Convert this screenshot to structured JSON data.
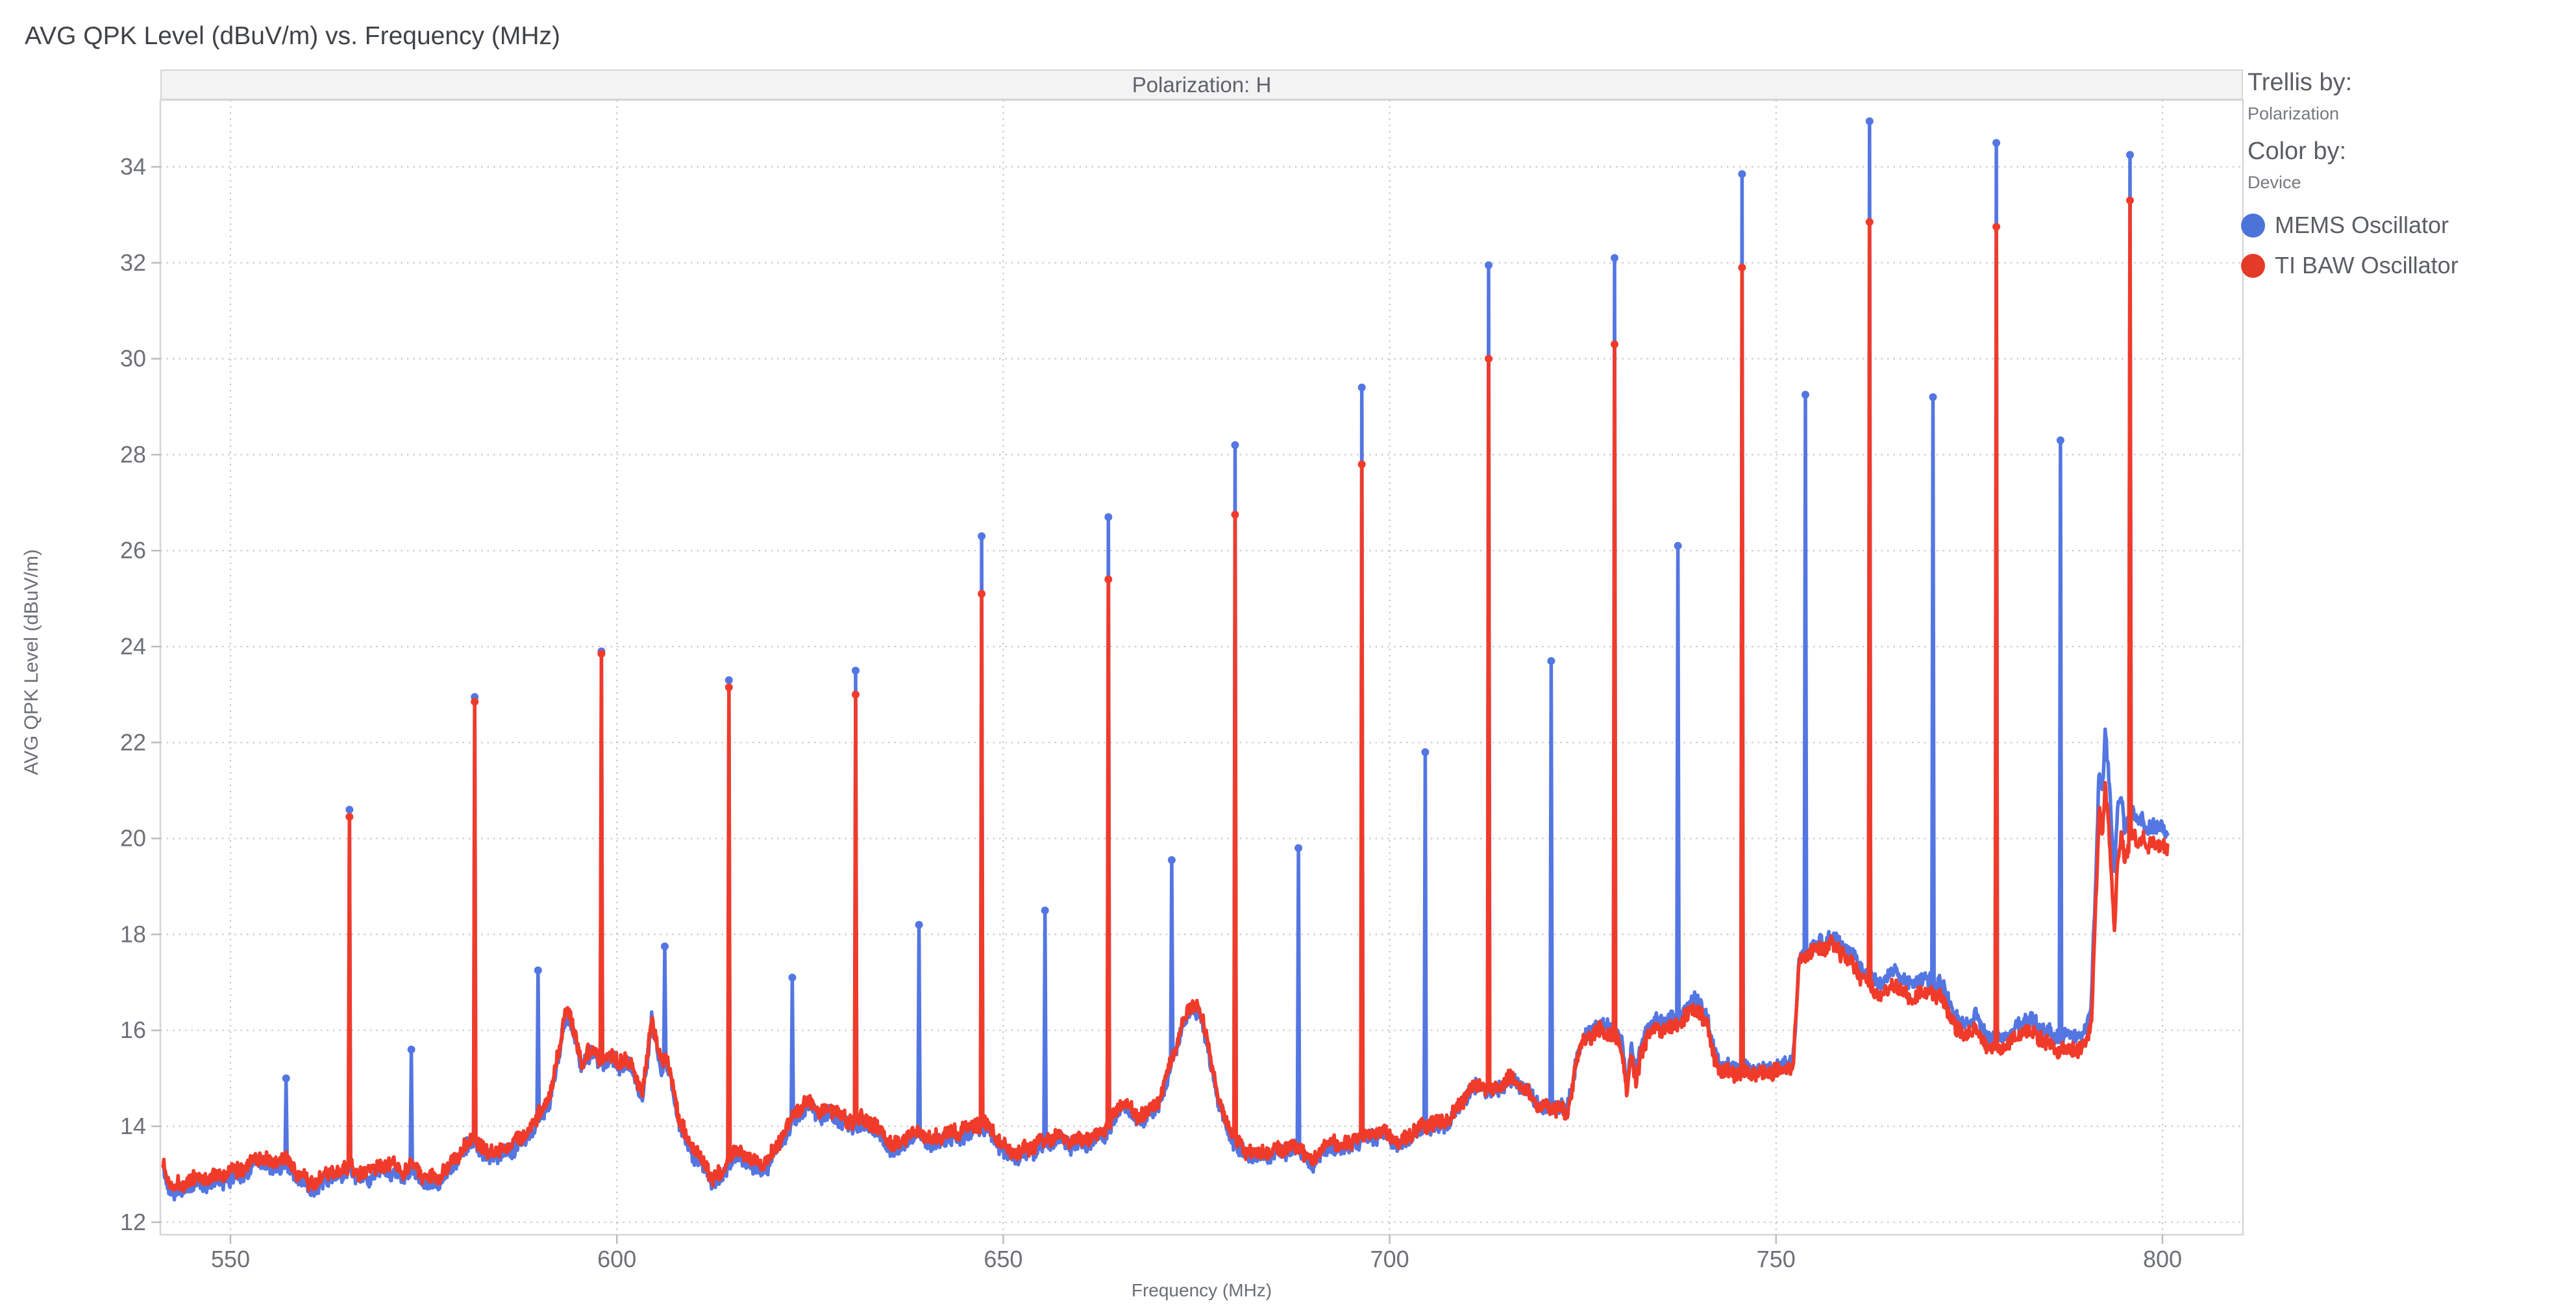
{
  "title": "AVG QPK Level (dBuV/m) vs. Frequency (MHz)",
  "trellis_header": "Polarization: H",
  "legend": {
    "trellis_by_label": "Trellis by:",
    "trellis_by_value": "Polarization",
    "color_by_label": "Color by:",
    "color_by_value": "Device",
    "items": [
      {
        "label": "MEMS Oscillator",
        "color": "#4b73d8"
      },
      {
        "label": "TI BAW Oscillator",
        "color": "#e43b28"
      }
    ]
  },
  "style": {
    "background": "#ffffff",
    "title_color": "#3f4347",
    "header_bg": "#f3f3f4",
    "header_text_color": "#5f6368",
    "plot_border_color": "#d6d6d6",
    "grid_color": "#c9c9c9",
    "tick_mark_color": "#b9bcc0",
    "tick_label_color": "#6d7076",
    "axis_title_color": "#6b6f75",
    "series_mems_color": "#5376e2",
    "series_ti_baw_color": "#f13b2a"
  },
  "chart_data": {
    "type": "line",
    "title": "AVG QPK Level (dBuV/m) vs. Frequency (MHz)",
    "trellis_panel": "Polarization: H",
    "xlabel": "Frequency (MHz)",
    "ylabel": "AVG QPK Level (dBuV/m)",
    "xlim": [
      541.0,
      810.4
    ],
    "ylim": [
      11.74,
      35.39
    ],
    "x_ticks": [
      550,
      600,
      650,
      700,
      750,
      800
    ],
    "y_ticks": [
      12,
      14,
      16,
      18,
      20,
      22,
      24,
      26,
      28,
      30,
      32,
      34
    ],
    "grid": "dotted",
    "legend_position": "right",
    "data_range_mhz": [
      541.3,
      800.7
    ],
    "sample_step_mhz": 0.08,
    "noise_amplitude_db": 0.14,
    "series": [
      {
        "name": "MEMS Oscillator",
        "color": "#5376e2"
      },
      {
        "name": "TI BAW Oscillator",
        "color": "#f13b2a"
      }
    ],
    "noise_floor_anchors": [
      [
        541.3,
        13.25
      ],
      [
        541.7,
        12.95
      ],
      [
        542.5,
        12.8
      ],
      [
        543.5,
        12.78
      ],
      [
        544.5,
        12.85
      ],
      [
        545.5,
        12.95
      ],
      [
        546.5,
        12.9
      ],
      [
        548,
        12.95
      ],
      [
        549.5,
        13.0
      ],
      [
        551,
        13.1
      ],
      [
        552.3,
        13.2
      ],
      [
        553.3,
        13.38
      ],
      [
        554.3,
        13.3
      ],
      [
        555.3,
        13.25
      ],
      [
        556.4,
        13.32
      ],
      [
        557.2,
        13.3
      ],
      [
        558,
        13.15
      ],
      [
        559,
        13.0
      ],
      [
        560.3,
        12.8
      ],
      [
        561.2,
        12.85
      ],
      [
        562.2,
        12.95
      ],
      [
        563.2,
        13.05
      ],
      [
        564.2,
        13.05
      ],
      [
        565.4,
        13.22
      ],
      [
        566.4,
        13.0
      ],
      [
        567.5,
        13.05
      ],
      [
        568.5,
        13.1
      ],
      [
        569.5,
        13.2
      ],
      [
        570.5,
        13.18
      ],
      [
        571.5,
        13.12
      ],
      [
        572.4,
        13.1
      ],
      [
        573.4,
        13.2
      ],
      [
        574.5,
        13.05
      ],
      [
        575.7,
        12.9
      ],
      [
        576.7,
        12.92
      ],
      [
        578,
        13.1
      ],
      [
        579.3,
        13.38
      ],
      [
        580.5,
        13.65
      ],
      [
        581.6,
        13.8
      ],
      [
        582.5,
        13.55
      ],
      [
        583.5,
        13.45
      ],
      [
        584.5,
        13.5
      ],
      [
        585.5,
        13.55
      ],
      [
        586.5,
        13.65
      ],
      [
        587.5,
        13.75
      ],
      [
        588.5,
        13.9
      ],
      [
        589.7,
        14.15
      ],
      [
        590.5,
        14.35
      ],
      [
        591.5,
        14.75
      ],
      [
        592.5,
        15.6
      ],
      [
        593.4,
        16.5
      ],
      [
        594,
        16.25
      ],
      [
        594.7,
        15.8
      ],
      [
        595.4,
        15.35
      ],
      [
        596.2,
        15.55
      ],
      [
        597,
        15.6
      ],
      [
        597.8,
        15.4
      ],
      [
        598.6,
        15.45
      ],
      [
        599.4,
        15.5
      ],
      [
        600.2,
        15.35
      ],
      [
        601,
        15.4
      ],
      [
        601.8,
        15.3
      ],
      [
        602.6,
        15.0
      ],
      [
        603.3,
        14.75
      ],
      [
        603.9,
        15.35
      ],
      [
        604.5,
        16.3
      ],
      [
        605.1,
        15.85
      ],
      [
        605.7,
        15.3
      ],
      [
        606.4,
        15.42
      ],
      [
        607.2,
        14.9
      ],
      [
        608,
        14.15
      ],
      [
        608.8,
        13.85
      ],
      [
        609.6,
        13.6
      ],
      [
        610.5,
        13.4
      ],
      [
        611.5,
        13.2
      ],
      [
        612.4,
        12.95
      ],
      [
        613.4,
        13.0
      ],
      [
        614.5,
        13.3
      ],
      [
        615.6,
        13.5
      ],
      [
        616.6,
        13.42
      ],
      [
        617.6,
        13.28
      ],
      [
        618.6,
        13.2
      ],
      [
        619.6,
        13.3
      ],
      [
        620.6,
        13.6
      ],
      [
        621.6,
        13.85
      ],
      [
        622.7,
        14.2
      ],
      [
        623.7,
        14.4
      ],
      [
        624.7,
        14.5
      ],
      [
        625.7,
        14.38
      ],
      [
        626.7,
        14.3
      ],
      [
        627.7,
        14.35
      ],
      [
        628.7,
        14.28
      ],
      [
        629.7,
        14.12
      ],
      [
        630.8,
        14.1
      ],
      [
        631.8,
        14.15
      ],
      [
        632.8,
        14.1
      ],
      [
        633.8,
        13.95
      ],
      [
        634.8,
        13.75
      ],
      [
        635.8,
        13.62
      ],
      [
        636.8,
        13.65
      ],
      [
        637.8,
        13.85
      ],
      [
        638.8,
        13.92
      ],
      [
        639.8,
        13.85
      ],
      [
        640.8,
        13.75
      ],
      [
        641.8,
        13.8
      ],
      [
        643,
        13.85
      ],
      [
        644.2,
        13.9
      ],
      [
        645.4,
        13.97
      ],
      [
        646.6,
        14.02
      ],
      [
        647.6,
        14.05
      ],
      [
        648.6,
        13.95
      ],
      [
        649.6,
        13.68
      ],
      [
        650.6,
        13.5
      ],
      [
        651.6,
        13.42
      ],
      [
        652.6,
        13.5
      ],
      [
        653.6,
        13.58
      ],
      [
        654.6,
        13.68
      ],
      [
        655.6,
        13.72
      ],
      [
        656.6,
        13.78
      ],
      [
        657.8,
        13.78
      ],
      [
        659,
        13.7
      ],
      [
        660.2,
        13.73
      ],
      [
        661.4,
        13.78
      ],
      [
        662.6,
        13.88
      ],
      [
        663.8,
        14.05
      ],
      [
        664.8,
        14.35
      ],
      [
        665.7,
        14.55
      ],
      [
        666.5,
        14.35
      ],
      [
        667.3,
        14.22
      ],
      [
        668.2,
        14.28
      ],
      [
        669.1,
        14.35
      ],
      [
        670,
        14.5
      ],
      [
        671,
        14.95
      ],
      [
        672,
        15.5
      ],
      [
        673,
        16.1
      ],
      [
        674,
        16.45
      ],
      [
        674.8,
        16.6
      ],
      [
        675.6,
        16.3
      ],
      [
        676.4,
        15.8
      ],
      [
        677.2,
        15.1
      ],
      [
        678,
        14.5
      ],
      [
        679,
        14.05
      ],
      [
        680,
        13.72
      ],
      [
        681,
        13.55
      ],
      [
        682.2,
        13.45
      ],
      [
        683.4,
        13.42
      ],
      [
        684.6,
        13.48
      ],
      [
        685.8,
        13.52
      ],
      [
        687,
        13.6
      ],
      [
        688.2,
        13.55
      ],
      [
        689.2,
        13.45
      ],
      [
        690,
        13.18
      ],
      [
        690.7,
        13.5
      ],
      [
        691.7,
        13.6
      ],
      [
        693,
        13.65
      ],
      [
        694.5,
        13.65
      ],
      [
        696,
        13.75
      ],
      [
        697.5,
        13.85
      ],
      [
        699,
        13.9
      ],
      [
        700.2,
        13.78
      ],
      [
        701.2,
        13.65
      ],
      [
        702.2,
        13.78
      ],
      [
        703.2,
        13.92
      ],
      [
        704.3,
        14.02
      ],
      [
        705.4,
        14.05
      ],
      [
        706.5,
        14.07
      ],
      [
        707.6,
        14.15
      ],
      [
        708.7,
        14.38
      ],
      [
        709.8,
        14.65
      ],
      [
        710.8,
        14.85
      ],
      [
        711.8,
        14.88
      ],
      [
        712.8,
        14.72
      ],
      [
        713.8,
        14.8
      ],
      [
        714.8,
        14.95
      ],
      [
        715.8,
        15.0
      ],
      [
        716.8,
        14.9
      ],
      [
        717.8,
        14.72
      ],
      [
        718.8,
        14.52
      ],
      [
        719.8,
        14.42
      ],
      [
        720.9,
        14.35
      ],
      [
        722,
        14.42
      ],
      [
        722.9,
        14.18
      ],
      [
        723.5,
        14.75
      ],
      [
        724.2,
        15.35
      ],
      [
        725.2,
        15.78
      ],
      [
        726.2,
        15.92
      ],
      [
        727.2,
        16.0
      ],
      [
        728.2,
        15.95
      ],
      [
        729.2,
        15.85
      ],
      [
        730.1,
        15.6
      ],
      [
        730.7,
        14.72
      ],
      [
        731.3,
        15.5
      ],
      [
        731.9,
        14.88
      ],
      [
        732.6,
        15.6
      ],
      [
        733.4,
        15.9
      ],
      [
        734.4,
        16.0
      ],
      [
        735.4,
        16.05
      ],
      [
        736.4,
        16.05
      ],
      [
        737.4,
        16.1
      ],
      [
        738.4,
        16.3
      ],
      [
        739.3,
        16.45
      ],
      [
        740.2,
        16.4
      ],
      [
        741.1,
        16.05
      ],
      [
        742,
        15.45
      ],
      [
        742.9,
        15.18
      ],
      [
        744,
        15.1
      ],
      [
        745.2,
        15.12
      ],
      [
        746.4,
        15.15
      ],
      [
        747.6,
        15.1
      ],
      [
        748.8,
        15.12
      ],
      [
        750,
        15.15
      ],
      [
        751.2,
        15.2
      ],
      [
        752.2,
        15.28
      ],
      [
        752.6,
        16.3
      ],
      [
        753,
        17.4
      ],
      [
        753.8,
        17.55
      ],
      [
        754.8,
        17.65
      ],
      [
        755.8,
        17.72
      ],
      [
        756.8,
        17.78
      ],
      [
        757.8,
        17.72
      ],
      [
        758.8,
        17.58
      ],
      [
        759.8,
        17.4
      ],
      [
        760.8,
        17.15
      ],
      [
        761.8,
        16.95
      ],
      [
        762.8,
        16.78
      ],
      [
        763.8,
        16.72
      ],
      [
        764.6,
        16.88
      ],
      [
        765.4,
        17.0
      ],
      [
        766.2,
        16.82
      ],
      [
        767.2,
        16.7
      ],
      [
        768.2,
        16.75
      ],
      [
        769.2,
        16.8
      ],
      [
        770.2,
        16.78
      ],
      [
        771.2,
        16.72
      ],
      [
        772.2,
        16.45
      ],
      [
        773.2,
        16.05
      ],
      [
        774.2,
        15.85
      ],
      [
        775,
        16.0
      ],
      [
        775.8,
        16.08
      ],
      [
        776.6,
        15.85
      ],
      [
        777.5,
        15.65
      ],
      [
        778.5,
        15.6
      ],
      [
        779.5,
        15.68
      ],
      [
        780.5,
        15.75
      ],
      [
        781.5,
        15.92
      ],
      [
        782.5,
        16.0
      ],
      [
        783.5,
        15.92
      ],
      [
        784.5,
        15.82
      ],
      [
        785.5,
        15.68
      ],
      [
        786.8,
        15.62
      ],
      [
        788,
        15.62
      ],
      [
        789.2,
        15.6
      ],
      [
        790.2,
        15.72
      ],
      [
        790.8,
        16.2
      ],
      [
        791.3,
        18.3
      ],
      [
        791.8,
        20.6
      ],
      [
        792.2,
        20.05
      ],
      [
        792.6,
        21.1
      ],
      [
        793,
        20.4
      ],
      [
        793.4,
        19.3
      ],
      [
        793.8,
        18.05
      ],
      [
        794.2,
        19.6
      ],
      [
        794.7,
        20.0
      ],
      [
        795.1,
        19.5
      ],
      [
        795.6,
        19.85
      ],
      [
        796.2,
        20.2
      ],
      [
        796.8,
        19.8
      ],
      [
        797.4,
        20.0
      ],
      [
        798,
        19.85
      ],
      [
        798.7,
        19.95
      ],
      [
        799.4,
        19.8
      ],
      [
        800.1,
        19.88
      ],
      [
        800.7,
        19.8
      ]
    ],
    "mems_offset_anchors": [
      [
        541,
        -0.13
      ],
      [
        575,
        -0.12
      ],
      [
        600,
        -0.1
      ],
      [
        625,
        -0.12
      ],
      [
        650,
        -0.12
      ],
      [
        675,
        -0.1
      ],
      [
        700,
        -0.08
      ],
      [
        712,
        -0.06
      ],
      [
        720,
        0.0
      ],
      [
        726,
        0.12
      ],
      [
        735,
        0.15
      ],
      [
        740,
        0.2
      ],
      [
        742.5,
        0.1
      ],
      [
        748,
        0.06
      ],
      [
        752,
        0.08
      ],
      [
        756,
        0.12
      ],
      [
        760,
        0.18
      ],
      [
        764,
        0.3
      ],
      [
        768,
        0.28
      ],
      [
        772,
        0.25
      ],
      [
        776,
        0.22
      ],
      [
        780,
        0.2
      ],
      [
        784,
        0.22
      ],
      [
        788,
        0.25
      ],
      [
        790.5,
        0.35
      ],
      [
        791.8,
        0.75
      ],
      [
        792.6,
        1.05
      ],
      [
        793.4,
        1.1
      ],
      [
        793.8,
        1.25
      ],
      [
        794.5,
        0.8
      ],
      [
        795.5,
        0.6
      ],
      [
        796.5,
        0.45
      ],
      [
        798,
        0.35
      ],
      [
        800.7,
        0.3
      ]
    ],
    "harmonic_spikes": [
      {
        "f": 557.2,
        "mems": 15.0,
        "ti_baw": null
      },
      {
        "f": 565.4,
        "mems": 20.6,
        "ti_baw": 20.45
      },
      {
        "f": 573.4,
        "mems": 15.6,
        "ti_baw": null
      },
      {
        "f": 581.6,
        "mems": 22.95,
        "ti_baw": 22.85
      },
      {
        "f": 589.8,
        "mems": 17.25,
        "ti_baw": null
      },
      {
        "f": 598.0,
        "mems": 23.9,
        "ti_baw": 23.85
      },
      {
        "f": 606.2,
        "mems": 17.75,
        "ti_baw": null
      },
      {
        "f": 614.5,
        "mems": 23.3,
        "ti_baw": 23.15
      },
      {
        "f": 622.7,
        "mems": 17.1,
        "ti_baw": null
      },
      {
        "f": 630.9,
        "mems": 23.5,
        "ti_baw": 23.0
      },
      {
        "f": 639.1,
        "mems": 18.2,
        "ti_baw": null
      },
      {
        "f": 647.2,
        "mems": 26.3,
        "ti_baw": 25.1
      },
      {
        "f": 655.4,
        "mems": 18.5,
        "ti_baw": null
      },
      {
        "f": 663.6,
        "mems": 26.7,
        "ti_baw": 25.4
      },
      {
        "f": 671.8,
        "mems": 19.55,
        "ti_baw": null
      },
      {
        "f": 680.0,
        "mems": 28.2,
        "ti_baw": 26.75
      },
      {
        "f": 688.2,
        "mems": 19.8,
        "ti_baw": null
      },
      {
        "f": 696.4,
        "mems": 29.4,
        "ti_baw": 27.8
      },
      {
        "f": 704.6,
        "mems": 21.8,
        "ti_baw": null
      },
      {
        "f": 712.8,
        "mems": 31.95,
        "ti_baw": 30.0
      },
      {
        "f": 720.9,
        "mems": 23.7,
        "ti_baw": null
      },
      {
        "f": 729.1,
        "mems": 32.1,
        "ti_baw": 30.3
      },
      {
        "f": 737.3,
        "mems": 26.1,
        "ti_baw": null
      },
      {
        "f": 745.6,
        "mems": 33.85,
        "ti_baw": 31.9
      },
      {
        "f": 753.8,
        "mems": 29.25,
        "ti_baw": null
      },
      {
        "f": 762.1,
        "mems": 34.95,
        "ti_baw": 32.85
      },
      {
        "f": 770.3,
        "mems": 29.2,
        "ti_baw": null
      },
      {
        "f": 778.5,
        "mems": 34.5,
        "ti_baw": 32.75
      },
      {
        "f": 786.8,
        "mems": 28.3,
        "ti_baw": null
      },
      {
        "f": 795.8,
        "mems": 34.25,
        "ti_baw": 33.3
      }
    ]
  }
}
